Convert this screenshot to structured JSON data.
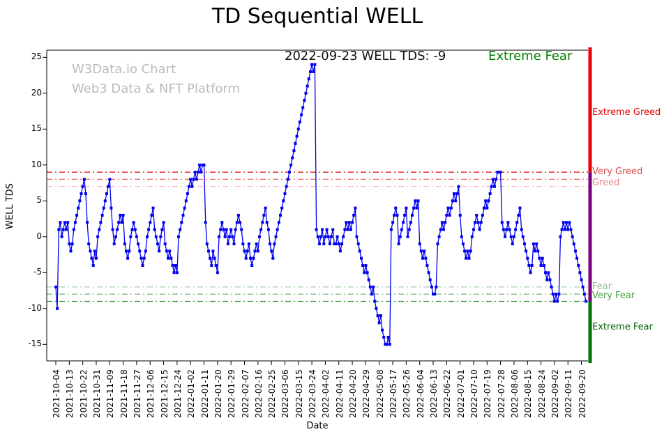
{
  "title": "TD Sequential WELL",
  "watermark": {
    "line1": "W3Data.io Chart",
    "line2": "Web3 Data & NFT Platform"
  },
  "annotation": {
    "label": "2022-09-23 WELL TDS: -9",
    "status": "Extreme Fear",
    "status_color": "#008000"
  },
  "axes": {
    "x_label": "Date",
    "y_label": "WELL TDS"
  },
  "chart_data": {
    "type": "line",
    "title": "TD Sequential WELL",
    "xlabel": "Date",
    "ylabel": "WELL TDS",
    "ylim": [
      -17.3,
      26
    ],
    "y_ticks": [
      25,
      20,
      15,
      10,
      5,
      0,
      -5,
      -10,
      -15
    ],
    "x_tick_interval_days": 9,
    "x_tick_labels": [
      "2021-10-04",
      "2021-10-13",
      "2021-10-22",
      "2021-10-31",
      "2021-11-09",
      "2021-11-18",
      "2021-11-27",
      "2021-12-06",
      "2021-12-15",
      "2021-12-24",
      "2022-01-02",
      "2022-01-11",
      "2022-01-20",
      "2022-01-29",
      "2022-02-07",
      "2022-02-16",
      "2022-02-25",
      "2022-03-06",
      "2022-03-15",
      "2022-03-24",
      "2022-04-02",
      "2022-04-11",
      "2022-04-20",
      "2022-04-29",
      "2022-05-08",
      "2022-05-17",
      "2022-05-26",
      "2022-06-04",
      "2022-06-13",
      "2022-06-22",
      "2022-07-01",
      "2022-07-10",
      "2022-07-19",
      "2022-07-28",
      "2022-08-06",
      "2022-08-15",
      "2022-08-24",
      "2022-09-02",
      "2022-09-11",
      "2022-09-20"
    ],
    "series": [
      {
        "name": "WELL TDS",
        "color": "#0000ee",
        "marker": "square",
        "start_date": "2021-10-04",
        "end_date": "2022-09-23",
        "values": [
          -7,
          -10,
          1,
          2,
          0,
          1,
          2,
          1,
          2,
          -1,
          -2,
          -1,
          1,
          2,
          3,
          4,
          5,
          6,
          7,
          8,
          6,
          2,
          -1,
          -2,
          -3,
          -4,
          -2,
          -3,
          0,
          1,
          2,
          3,
          4,
          5,
          6,
          7,
          8,
          4,
          1,
          -1,
          0,
          1,
          2,
          3,
          2,
          3,
          -1,
          -2,
          -3,
          -2,
          0,
          1,
          2,
          1,
          0,
          -1,
          -2,
          -3,
          -4,
          -3,
          -2,
          0,
          1,
          2,
          3,
          4,
          1,
          0,
          -1,
          -2,
          0,
          1,
          2,
          -1,
          -2,
          -3,
          -2,
          -3,
          -4,
          -5,
          -4,
          -5,
          0,
          1,
          2,
          3,
          4,
          5,
          6,
          7,
          8,
          7,
          8,
          9,
          8,
          9,
          10,
          9,
          10,
          10,
          2,
          -1,
          -2,
          -3,
          -4,
          -2,
          -3,
          -4,
          -5,
          0,
          1,
          2,
          1,
          0,
          1,
          -1,
          0,
          1,
          0,
          -1,
          1,
          2,
          3,
          2,
          1,
          -1,
          -2,
          -3,
          -2,
          -1,
          -3,
          -4,
          -3,
          -2,
          -1,
          -2,
          0,
          1,
          2,
          3,
          4,
          2,
          1,
          -1,
          -2,
          -3,
          -1,
          0,
          1,
          2,
          3,
          4,
          5,
          6,
          7,
          8,
          9,
          10,
          11,
          12,
          13,
          14,
          15,
          16,
          17,
          18,
          19,
          20,
          21,
          22,
          23,
          24,
          23,
          24,
          1,
          0,
          -1,
          0,
          1,
          -1,
          0,
          1,
          0,
          -1,
          0,
          1,
          -1,
          -1,
          0,
          -1,
          -2,
          -1,
          0,
          1,
          2,
          1,
          2,
          1,
          2,
          3,
          4,
          0,
          -1,
          -2,
          -3,
          -4,
          -5,
          -4,
          -5,
          -6,
          -7,
          -8,
          -7,
          -9,
          -10,
          -11,
          -12,
          -11,
          -13,
          -14,
          -15,
          -15,
          -14,
          -15,
          1,
          2,
          3,
          4,
          3,
          -1,
          0,
          1,
          2,
          3,
          4,
          0,
          1,
          2,
          3,
          4,
          5,
          4,
          5,
          -1,
          -2,
          -3,
          -2,
          -3,
          -4,
          -5,
          -6,
          -7,
          -8,
          -8,
          -7,
          -1,
          0,
          1,
          2,
          1,
          2,
          3,
          4,
          3,
          4,
          5,
          6,
          5,
          6,
          7,
          3,
          0,
          -1,
          -2,
          -3,
          -2,
          -3,
          -2,
          0,
          1,
          2,
          3,
          2,
          1,
          2,
          3,
          4,
          5,
          4,
          5,
          6,
          7,
          8,
          7,
          8,
          9,
          9,
          9,
          2,
          1,
          0,
          1,
          2,
          1,
          0,
          -1,
          0,
          1,
          2,
          3,
          4,
          1,
          0,
          -1,
          -2,
          -3,
          -4,
          -5,
          -4,
          -1,
          -2,
          -1,
          -2,
          -3,
          -4,
          -3,
          -4,
          -5,
          -6,
          -5,
          -6,
          -7,
          -8,
          -9,
          -8,
          -9,
          -8,
          0,
          1,
          2,
          1,
          2,
          1,
          2,
          1,
          0,
          -1,
          -2,
          -3,
          -4,
          -5,
          -6,
          -7,
          -8,
          -9
        ]
      }
    ],
    "reference_lines": [
      {
        "value": 9,
        "color": "#dd0000",
        "style": "dashdot"
      },
      {
        "value": 8,
        "color": "#ee6666",
        "style": "dashdot"
      },
      {
        "value": 7,
        "color": "#ffb0b0",
        "style": "dashdot"
      },
      {
        "value": -7,
        "color": "#a8cfa8",
        "style": "dashdot"
      },
      {
        "value": -8,
        "color": "#66aa66",
        "style": "dashdot"
      },
      {
        "value": -9,
        "color": "#2e8b2e",
        "style": "dashdot"
      }
    ],
    "zone_labels": [
      {
        "text": "Extreme Greed",
        "color": "#ee0000",
        "y": 17.3
      },
      {
        "text": "Very Greed",
        "color": "#dd4444",
        "y": 9
      },
      {
        "text": "Greed",
        "color": "#f08080",
        "y": 7.5
      },
      {
        "text": "Fear",
        "color": "#8fbc8f",
        "y": -7
      },
      {
        "text": "Very Fear",
        "color": "#44a044",
        "y": -8.3
      },
      {
        "text": "Extreme Fear",
        "color": "#006400",
        "y": -12.6
      }
    ],
    "right_bar_segments": [
      {
        "from": 26,
        "to": 9,
        "color": "#ee0000"
      },
      {
        "from": 9,
        "to": -9,
        "color": "#7f007f"
      },
      {
        "from": -9,
        "to": -17.3,
        "color": "#007700"
      }
    ],
    "legend": "off",
    "grid": "off"
  }
}
